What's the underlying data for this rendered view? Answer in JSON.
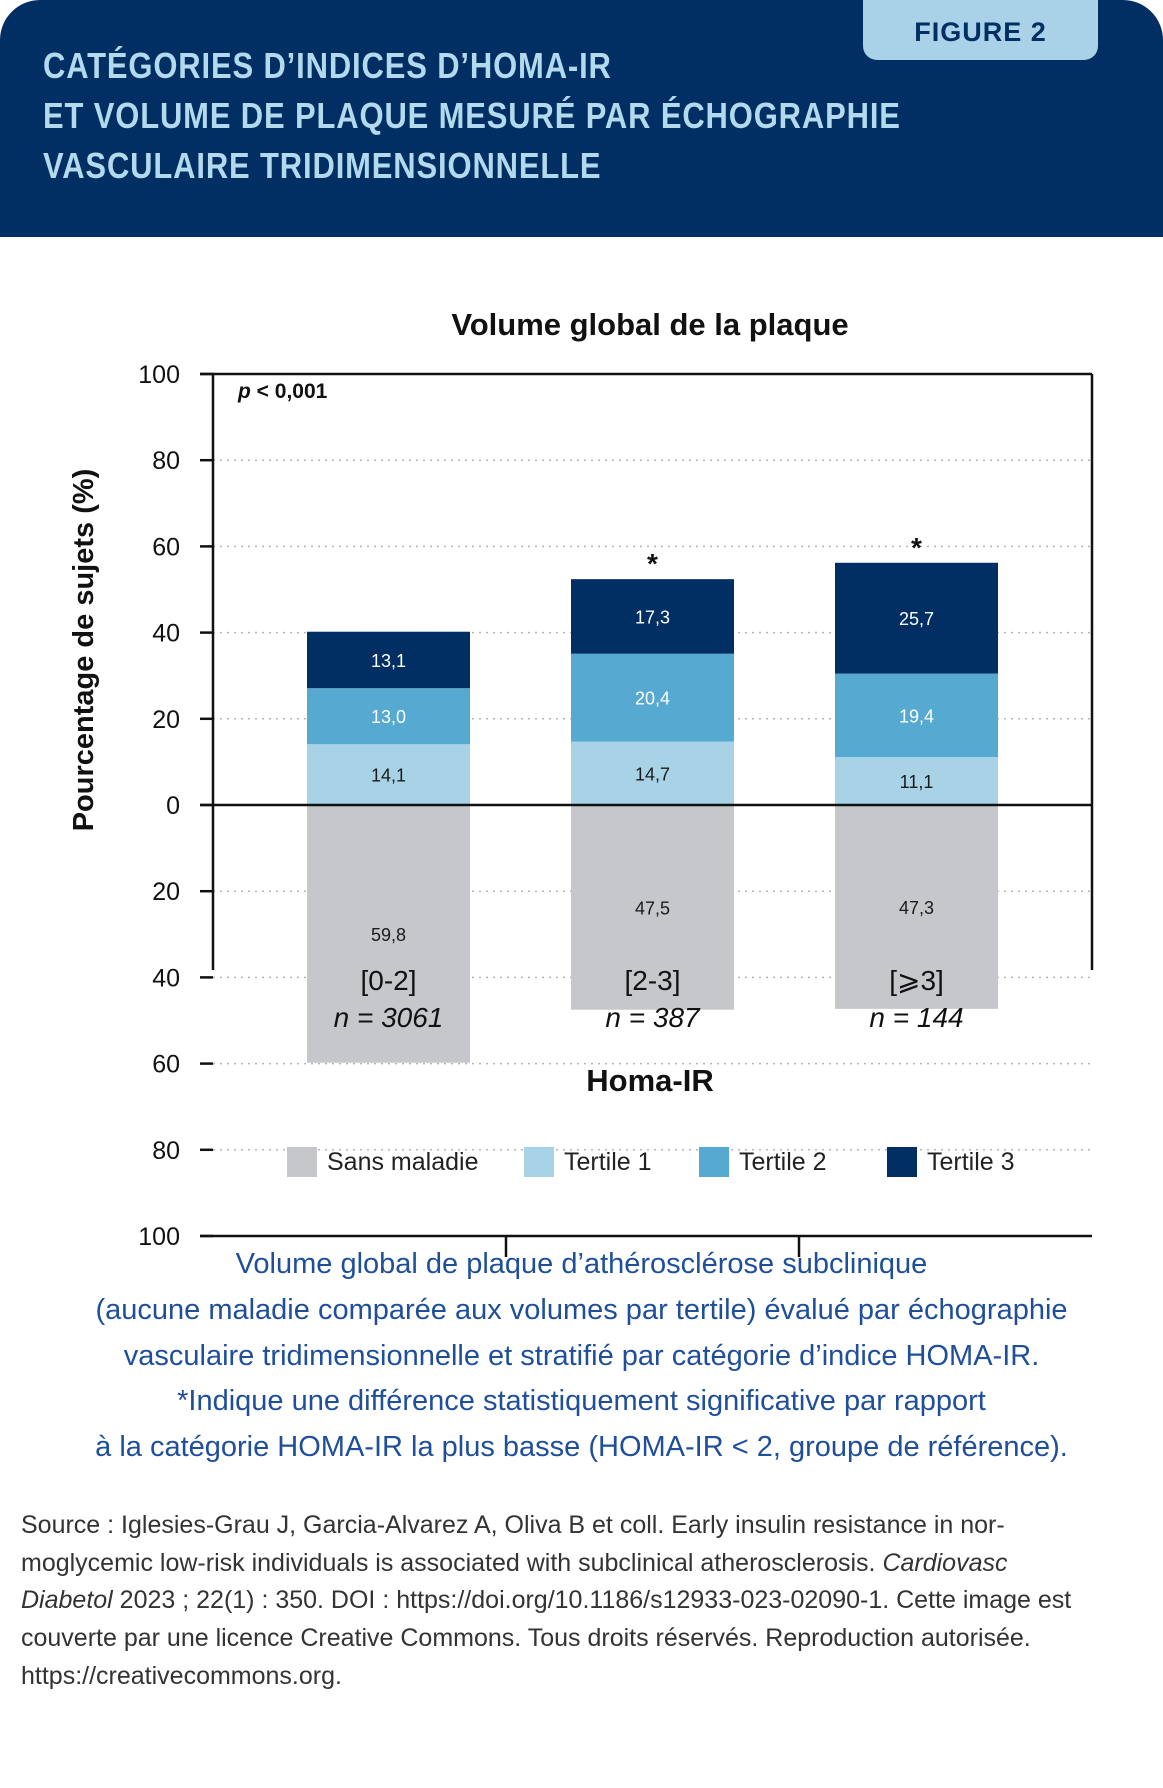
{
  "header": {
    "figure_label": "FIGURE 2",
    "title_lines": [
      "CATÉGORIES D’INDICES D’HOMA-IR",
      "ET VOLUME DE PLAQUE MESURÉ PAR ÉCHOGRAPHIE",
      "VASCULAIRE TRIDIMENSIONNELLE"
    ]
  },
  "chart_data": {
    "type": "bar",
    "stacked": true,
    "title": "Volume global de la plaque",
    "ylabel": "Pourcentage de sujets (%)",
    "xlabel": "Homa-IR",
    "ylim": [
      -100,
      100
    ],
    "ytick_values": [
      100,
      80,
      60,
      40,
      20,
      0,
      -20,
      -40,
      -60,
      -80,
      -100
    ],
    "ytick_labels": [
      "100",
      "80",
      "60",
      "40",
      "20",
      "0",
      "20",
      "40",
      "60",
      "80",
      "100"
    ],
    "grid": "horizontal dotted",
    "annotation": "p < 0,001",
    "annotation_p": "p",
    "annotation_rest": "< 0,001",
    "categories": [
      "[0-2]",
      "[2-3]",
      "[⩾3]"
    ],
    "category_n": [
      "n = 3061",
      "n = 387",
      "n = 144"
    ],
    "significance": [
      "",
      "*",
      "*"
    ],
    "series": [
      {
        "name": "Sans maladie",
        "direction": "down",
        "color": "#c6c7cb",
        "label_color": "#1a1a1a",
        "values": [
          59.8,
          47.5,
          47.3
        ],
        "labels": [
          "59,8",
          "47,5",
          "47,3"
        ]
      },
      {
        "name": "Tertile 1",
        "direction": "up",
        "color": "#a8d3e6",
        "label_color": "#1a1a1a",
        "values": [
          14.1,
          14.7,
          11.1
        ],
        "labels": [
          "14,1",
          "14,7",
          "11,1"
        ]
      },
      {
        "name": "Tertile 2",
        "direction": "up",
        "color": "#56a9d0",
        "label_color": "#ffffff",
        "values": [
          13.0,
          20.4,
          19.4
        ],
        "labels": [
          "13,0",
          "20,4",
          "19,4"
        ]
      },
      {
        "name": "Tertile 3",
        "direction": "up",
        "color": "#012f64",
        "label_color": "#ffffff",
        "values": [
          13.1,
          17.3,
          25.7
        ],
        "labels": [
          "13,1",
          "17,3",
          "25,7"
        ]
      }
    ],
    "legend_position": "bottom"
  },
  "caption_lines": [
    "Volume global de plaque d’athérosclérose subclinique",
    "(aucune maladie comparée aux volumes par tertile) évalué par échographie",
    "vasculaire tridimensionnelle et stratifié par catégorie d’indice HOMA-IR.",
    "*Indique une différence statistiquement significative par rapport",
    "à la catégorie HOMA-IR la plus basse (HOMA-IR < 2, groupe de référence)."
  ],
  "source": {
    "line1": "Source : Iglesies-Grau J, Garcia-Alvarez A, Oliva B et coll. Early insulin resistance in nor-",
    "line2": "moglycemic low-risk individuals is associated with subclinical atherosclerosis. ",
    "line2_italic": "Cardiovasc",
    "line3_italic": "Diabetol",
    "line3": " 2023 ; 22(1) : 350. DOI : https://doi.org/10.1186/s12933-023-02090-1. Cette image est",
    "line4": "couverte par une licence Creative Commons. Tous droits réservés. Reproduction autorisée.",
    "line5": "https://creativecommons.org."
  },
  "colors": {
    "header_bg": "#012f64",
    "title_text": "#b3d9ec",
    "tab_bg": "#a9d2e8",
    "caption": "#1f4f9a"
  }
}
